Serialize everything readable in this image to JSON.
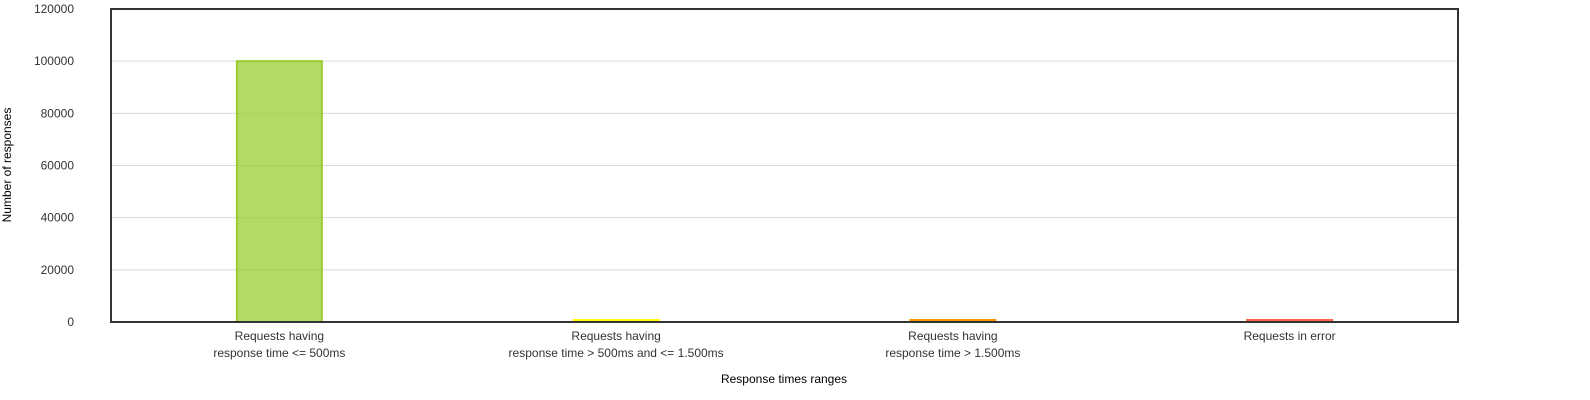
{
  "chart_data": {
    "type": "bar",
    "title": "",
    "xlabel": "Response times ranges",
    "ylabel": "Number of responses",
    "ylim": [
      0,
      120000
    ],
    "yticks": [
      0,
      20000,
      40000,
      60000,
      80000,
      100000,
      120000
    ],
    "grid": true,
    "legend": "none",
    "categories": [
      [
        "Requests having",
        "response time <= 500ms"
      ],
      [
        "Requests having",
        "response time > 500ms and <= 1.500ms"
      ],
      [
        "Requests having",
        "response time > 1.500ms"
      ],
      [
        "Requests in error"
      ]
    ],
    "values": [
      100000,
      180,
      150,
      200
    ],
    "colors": [
      "#9ACD32",
      "#FFFF00",
      "#FF9900",
      "#FF6347"
    ]
  }
}
